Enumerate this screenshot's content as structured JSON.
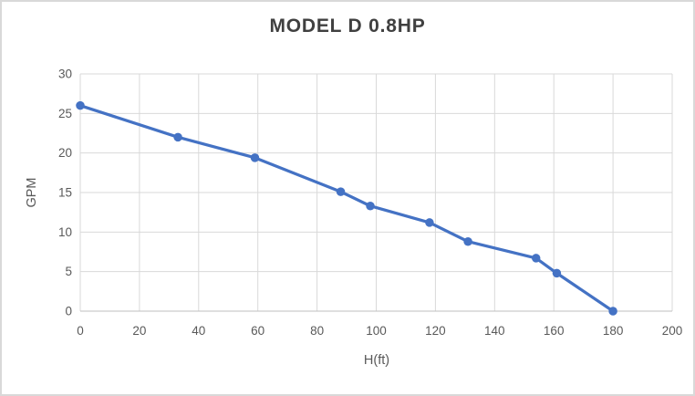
{
  "chart_data": {
    "type": "line",
    "title": "MODEL D 0.8HP",
    "xlabel": "H(ft)",
    "ylabel": "GPM",
    "xlim": [
      0,
      200
    ],
    "ylim": [
      0,
      30
    ],
    "x_ticks": [
      0,
      20,
      40,
      60,
      80,
      100,
      120,
      140,
      160,
      180,
      200
    ],
    "y_ticks": [
      0,
      5,
      10,
      15,
      20,
      25,
      30
    ],
    "grid": true,
    "legend": false,
    "series": [
      {
        "name": "MODEL D 0.8HP",
        "color": "#4472C4",
        "marker": "circle",
        "points": [
          {
            "x": 0,
            "y": 26
          },
          {
            "x": 33,
            "y": 22
          },
          {
            "x": 59,
            "y": 19.4
          },
          {
            "x": 88,
            "y": 15.1
          },
          {
            "x": 98,
            "y": 13.3
          },
          {
            "x": 118,
            "y": 11.2
          },
          {
            "x": 131,
            "y": 8.8
          },
          {
            "x": 154,
            "y": 6.7
          },
          {
            "x": 161,
            "y": 4.8
          },
          {
            "x": 180,
            "y": 0
          }
        ]
      }
    ],
    "colors": {
      "series": "#4472C4",
      "title_text": "#404040",
      "tick_text": "#595959",
      "axis_title_text": "#595959",
      "gridline": "#d9d9d9",
      "axis_line": "#bfbfbf",
      "background": "#ffffff",
      "border": "#d9d9d9"
    }
  }
}
